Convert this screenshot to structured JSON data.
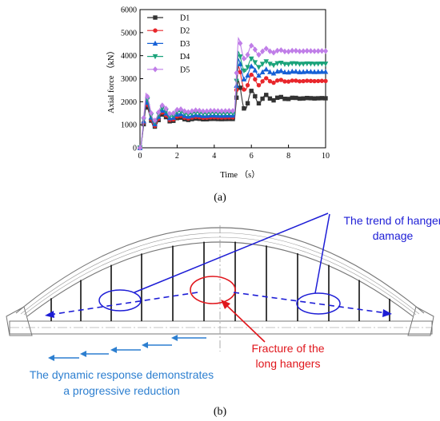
{
  "chart_data": {
    "type": "line",
    "xlabel": "Time （s）",
    "ylabel": "Axial force （kN）",
    "xlim": [
      0,
      10
    ],
    "ylim": [
      0,
      6000
    ],
    "x_ticks": [
      "0",
      "2",
      "4",
      "6",
      "8",
      "10"
    ],
    "y_ticks": [
      "0",
      "1000",
      "2000",
      "3000",
      "4000",
      "5000",
      "6000"
    ],
    "legend_position": "top-left",
    "grid": false,
    "series": [
      {
        "name": "D1",
        "color": "#333333",
        "marker": "square",
        "pre_level": 1250,
        "first_peak": 2050,
        "post_peak": 3100,
        "post_level": 2150
      },
      {
        "name": "D2",
        "color": "#e8262b",
        "marker": "circle",
        "pre_level": 1320,
        "first_peak": 2200,
        "post_peak": 3700,
        "post_level": 2900
      },
      {
        "name": "D3",
        "color": "#1560d6",
        "marker": "triangle-up",
        "pre_level": 1400,
        "first_peak": 2300,
        "post_peak": 4000,
        "post_level": 3300
      },
      {
        "name": "D4",
        "color": "#1aa37a",
        "marker": "triangle-down",
        "pre_level": 1500,
        "first_peak": 2450,
        "post_peak": 4300,
        "post_level": 3650
      },
      {
        "name": "D5",
        "color": "#c07ee8",
        "marker": "diamond",
        "pre_level": 1600,
        "first_peak": 2600,
        "post_peak": 4900,
        "post_level": 4200
      }
    ],
    "break_time": 5.1
  },
  "captions": {
    "a": "(a)",
    "b": "(b)"
  },
  "annotations": {
    "trend_line1": "The trend of hanger",
    "trend_line2": "damage",
    "fracture_line1": "Fracture of the",
    "fracture_line2": "long hangers",
    "response_line1": "The dynamic response demonstrates",
    "response_line2": "a progressive reduction"
  },
  "colors": {
    "blue_annotation": "#1d1dd6",
    "red_annotation": "#e0161c",
    "light_blue_annotation": "#2d7fd0"
  }
}
